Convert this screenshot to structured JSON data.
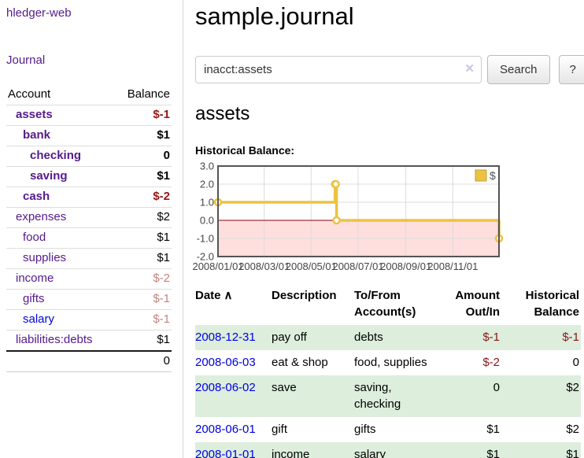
{
  "app": {
    "title": "hledger-web",
    "nav_journal": "Journal"
  },
  "sidebar": {
    "header": {
      "account": "Account",
      "balance": "Balance"
    },
    "accounts": [
      {
        "name": "assets",
        "level": 0,
        "balance": "$-1",
        "bold": true,
        "negative": true,
        "link_color": "purple"
      },
      {
        "name": "bank",
        "level": 1,
        "balance": "$1",
        "bold": true,
        "negative": false,
        "link_color": "purple"
      },
      {
        "name": "checking",
        "level": 2,
        "balance": "0",
        "bold": true,
        "negative": false,
        "link_color": "purple"
      },
      {
        "name": "saving",
        "level": 2,
        "balance": "$1",
        "bold": true,
        "negative": false,
        "link_color": "purple"
      },
      {
        "name": "cash",
        "level": 1,
        "balance": "$-2",
        "bold": true,
        "negative": true,
        "link_color": "purple"
      },
      {
        "name": "expenses",
        "level": 0,
        "balance": "$2",
        "bold": false,
        "negative": false,
        "link_color": "purple"
      },
      {
        "name": "food",
        "level": 1,
        "balance": "$1",
        "bold": false,
        "negative": false,
        "link_color": "purple"
      },
      {
        "name": "supplies",
        "level": 1,
        "balance": "$1",
        "bold": false,
        "negative": false,
        "link_color": "purple"
      },
      {
        "name": "income",
        "level": 0,
        "balance": "$-2",
        "bold": false,
        "negative": true,
        "link_color": "purple"
      },
      {
        "name": "gifts",
        "level": 1,
        "balance": "$-1",
        "bold": false,
        "negative": true,
        "link_color": "purple"
      },
      {
        "name": "salary",
        "level": 1,
        "balance": "$-1",
        "bold": false,
        "negative": true,
        "link_color": "blue"
      },
      {
        "name": "liabilities:debts",
        "level": 0,
        "balance": "$1",
        "bold": false,
        "negative": false,
        "link_color": "purple"
      }
    ],
    "total": "0"
  },
  "header": {
    "title": "sample.journal"
  },
  "search": {
    "value": "inacct:assets",
    "clear_icon": "✕",
    "button": "Search",
    "help_button": "?"
  },
  "account_page": {
    "title": "assets",
    "chart_label": "Historical Balance:"
  },
  "chart_data": {
    "type": "line",
    "step": true,
    "title": "Historical Balance",
    "series": [
      {
        "name": "$",
        "color": "#edc240",
        "points": [
          [
            "2008-01-01",
            1
          ],
          [
            "2008-06-01",
            2
          ],
          [
            "2008-06-02",
            2
          ],
          [
            "2008-06-03",
            0
          ],
          [
            "2008-12-31",
            -1
          ]
        ]
      }
    ],
    "x_ticks": [
      "2008/01/01",
      "2008/03/01",
      "2008/05/01",
      "2008/07/01",
      "2008/09/01",
      "2008/11/01"
    ],
    "y_ticks": [
      3.0,
      2.0,
      1.0,
      0.0,
      -1.0,
      -2.0
    ],
    "ylim": [
      -2,
      3
    ],
    "xlim_dates": [
      "2008-01-01",
      "2008-12-31"
    ],
    "grid": true,
    "negative_region_color": "#ffdede",
    "zero_line_color": "#8b0000",
    "legend": {
      "label": "$",
      "position": "top-right"
    }
  },
  "register": {
    "columns": [
      "Date",
      "Description",
      "To/From Account(s)",
      "Amount Out/In",
      "Historical Balance"
    ],
    "sort_icon": "∧",
    "rows": [
      {
        "date": "2008-12-31",
        "description": "pay off",
        "accounts": "debts",
        "amount": "$-1",
        "balance": "$-1",
        "amount_negative": true,
        "balance_negative": true,
        "highlight": true
      },
      {
        "date": "2008-06-03",
        "description": "eat & shop",
        "accounts": "food, supplies",
        "amount": "$-2",
        "balance": "0",
        "amount_negative": true,
        "balance_negative": false,
        "highlight": false
      },
      {
        "date": "2008-06-02",
        "description": "save",
        "accounts": "saving, checking",
        "amount": "0",
        "balance": "$2",
        "amount_negative": false,
        "balance_negative": false,
        "highlight": true
      },
      {
        "date": "2008-06-01",
        "description": "gift",
        "accounts": "gifts",
        "amount": "$1",
        "balance": "$2",
        "amount_negative": false,
        "balance_negative": false,
        "highlight": false
      },
      {
        "date": "2008-01-01",
        "description": "income",
        "accounts": "salary",
        "amount": "$1",
        "balance": "$1",
        "amount_negative": false,
        "balance_negative": false,
        "highlight": true
      }
    ]
  }
}
